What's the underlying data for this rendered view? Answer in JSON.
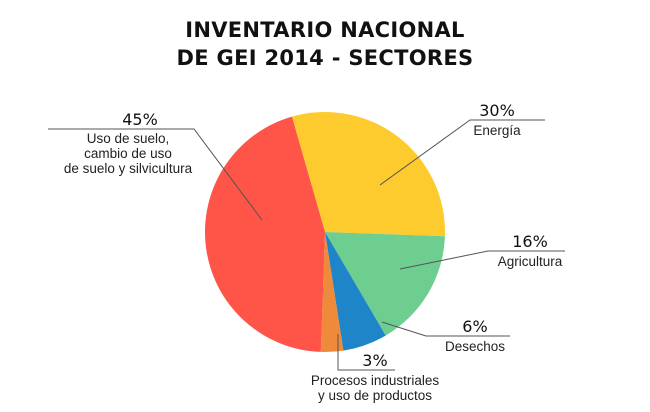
{
  "chart_data": {
    "type": "pie",
    "title_lines": [
      "INVENTARIO NACIONAL",
      "DE GEI 2014 - SECTORES"
    ],
    "slices": [
      {
        "key": "energia",
        "label_lines": [
          "Energía"
        ],
        "percent_label": "30%",
        "value": 30,
        "color": "#FECB2F"
      },
      {
        "key": "agricultura",
        "label_lines": [
          "Agricultura"
        ],
        "percent_label": "16%",
        "value": 16,
        "color": "#6ECE8F"
      },
      {
        "key": "desechos",
        "label_lines": [
          "Desechos"
        ],
        "percent_label": "6%",
        "value": 6,
        "color": "#1E86C8"
      },
      {
        "key": "procesos",
        "label_lines": [
          "Procesos industriales",
          "y uso de productos"
        ],
        "percent_label": "3%",
        "value": 3,
        "color": "#EF8A3A"
      },
      {
        "key": "uso-suelo",
        "label_lines": [
          "Uso de suelo,",
          "cambio de uso",
          "de suelo y silvicultura"
        ],
        "percent_label": "45%",
        "value": 45,
        "color": "#FF5448"
      }
    ]
  }
}
